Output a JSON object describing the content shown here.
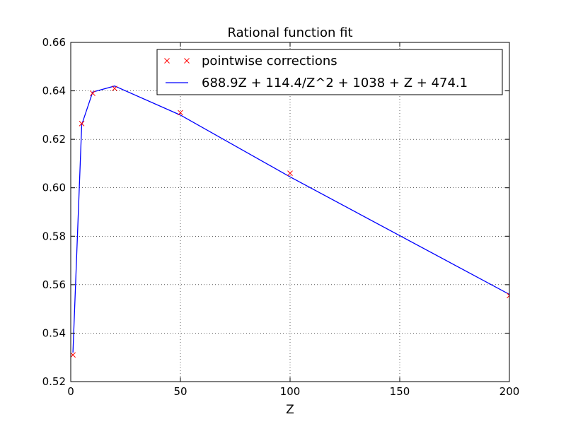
{
  "chart_data": {
    "type": "line",
    "title": "Rational function fit",
    "xlabel": "Z",
    "ylabel": "",
    "xlim": [
      0,
      200
    ],
    "ylim": [
      0.52,
      0.66
    ],
    "xticks": [
      0,
      50,
      100,
      150,
      200
    ],
    "xtick_labels": [
      "0",
      "50",
      "100",
      "150",
      "200"
    ],
    "yticks": [
      0.52,
      0.54,
      0.56,
      0.58,
      0.6,
      0.62,
      0.64,
      0.66
    ],
    "ytick_labels": [
      "0.52",
      "0.54",
      "0.56",
      "0.58",
      "0.60",
      "0.62",
      "0.64",
      "0.66"
    ],
    "grid": true,
    "legend_position": "top-right",
    "series": [
      {
        "name": "pointwise corrections",
        "style": "markers",
        "marker": "x",
        "color": "#ff0000",
        "x": [
          1,
          5,
          10,
          20,
          50,
          100,
          200
        ],
        "y": [
          0.531,
          0.6265,
          0.639,
          0.641,
          0.631,
          0.606,
          0.5555
        ]
      },
      {
        "name": "688.9Z + 114.4/Z^2 + 1038 + Z + 474.1",
        "style": "line",
        "color": "#0000ff",
        "x": [
          1,
          5,
          10,
          20,
          50,
          100,
          200
        ],
        "y": [
          0.532,
          0.626,
          0.6395,
          0.642,
          0.63,
          0.6045,
          0.556
        ]
      }
    ]
  }
}
